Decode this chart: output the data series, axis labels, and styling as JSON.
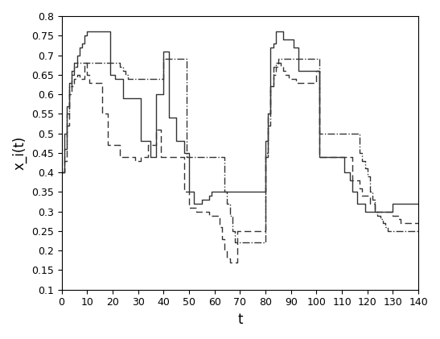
{
  "title": "",
  "xlabel": "t",
  "ylabel": "x_i(t)",
  "xlim": [
    0,
    140
  ],
  "ylim": [
    0.1,
    0.8
  ],
  "xticks": [
    0,
    10,
    20,
    30,
    40,
    50,
    60,
    70,
    80,
    90,
    100,
    110,
    120,
    130,
    140
  ],
  "yticks": [
    0.1,
    0.15,
    0.2,
    0.25,
    0.3,
    0.35,
    0.4,
    0.45,
    0.5,
    0.55,
    0.6,
    0.65,
    0.7,
    0.75,
    0.8
  ],
  "agent1_t": [
    0,
    1,
    2,
    3,
    4,
    5,
    6,
    7,
    8,
    9,
    10,
    11,
    12,
    13,
    14,
    15,
    16,
    17,
    18,
    19,
    20,
    21,
    22,
    23,
    24,
    25,
    26,
    27,
    28,
    29,
    30,
    31,
    32,
    33,
    34,
    35,
    36,
    37,
    38,
    39,
    40,
    41,
    42,
    43,
    44,
    45,
    46,
    47,
    48,
    49,
    50,
    51,
    52,
    53,
    54,
    55,
    56,
    57,
    58,
    59,
    60,
    61,
    62,
    63,
    64,
    65,
    66,
    67,
    68,
    69,
    70,
    71,
    72,
    73,
    74,
    75,
    76,
    77,
    78,
    79,
    80,
    81,
    82,
    83,
    84,
    85,
    86,
    87,
    88,
    89,
    90,
    91,
    92,
    93,
    94,
    95,
    96,
    97,
    98,
    99,
    100,
    101,
    102,
    103,
    104,
    105,
    106,
    107,
    108,
    109,
    110,
    111,
    112,
    113,
    114,
    115,
    116,
    117,
    118,
    119,
    120,
    121,
    122,
    123,
    124,
    125,
    126,
    127,
    128,
    129,
    130,
    131,
    132,
    133,
    134,
    135,
    136,
    137,
    138,
    139,
    140
  ],
  "agent1_x": [
    0.4,
    0.5,
    0.57,
    0.63,
    0.66,
    0.68,
    0.7,
    0.72,
    0.73,
    0.75,
    0.76,
    0.76,
    0.76,
    0.76,
    0.76,
    0.76,
    0.76,
    0.76,
    0.76,
    0.65,
    0.65,
    0.64,
    0.64,
    0.64,
    0.59,
    0.59,
    0.59,
    0.59,
    0.59,
    0.59,
    0.59,
    0.48,
    0.48,
    0.48,
    0.48,
    0.44,
    0.44,
    0.6,
    0.6,
    0.6,
    0.71,
    0.71,
    0.54,
    0.54,
    0.54,
    0.48,
    0.48,
    0.48,
    0.45,
    0.45,
    0.35,
    0.35,
    0.32,
    0.32,
    0.32,
    0.33,
    0.33,
    0.33,
    0.34,
    0.35,
    0.35,
    0.35,
    0.35,
    0.35,
    0.35,
    0.35,
    0.35,
    0.35,
    0.35,
    0.35,
    0.35,
    0.35,
    0.35,
    0.35,
    0.35,
    0.35,
    0.35,
    0.35,
    0.35,
    0.35,
    0.48,
    0.55,
    0.72,
    0.73,
    0.76,
    0.76,
    0.76,
    0.74,
    0.74,
    0.74,
    0.74,
    0.72,
    0.72,
    0.66,
    0.66,
    0.66,
    0.66,
    0.66,
    0.66,
    0.66,
    0.66,
    0.44,
    0.44,
    0.44,
    0.44,
    0.44,
    0.44,
    0.44,
    0.44,
    0.44,
    0.44,
    0.4,
    0.4,
    0.38,
    0.35,
    0.35,
    0.32,
    0.32,
    0.32,
    0.3,
    0.3,
    0.3,
    0.3,
    0.3,
    0.3,
    0.3,
    0.3,
    0.3,
    0.3,
    0.3,
    0.32,
    0.32,
    0.32,
    0.32,
    0.32,
    0.32,
    0.32,
    0.32,
    0.32,
    0.32,
    0.32
  ],
  "agent2_t": [
    0,
    1,
    2,
    3,
    4,
    5,
    6,
    7,
    8,
    9,
    10,
    11,
    12,
    13,
    14,
    15,
    16,
    17,
    18,
    19,
    20,
    21,
    22,
    23,
    24,
    25,
    26,
    27,
    28,
    29,
    30,
    31,
    32,
    33,
    34,
    35,
    36,
    37,
    38,
    39,
    40,
    41,
    42,
    43,
    44,
    45,
    46,
    47,
    48,
    49,
    50,
    51,
    52,
    53,
    54,
    55,
    56,
    57,
    58,
    59,
    60,
    61,
    62,
    63,
    64,
    65,
    66,
    67,
    68,
    69,
    70,
    71,
    72,
    73,
    74,
    75,
    76,
    77,
    78,
    79,
    80,
    81,
    82,
    83,
    84,
    85,
    86,
    87,
    88,
    89,
    90,
    91,
    92,
    93,
    94,
    95,
    96,
    97,
    98,
    99,
    100,
    101,
    102,
    103,
    104,
    105,
    106,
    107,
    108,
    109,
    110,
    111,
    112,
    113,
    114,
    115,
    116,
    117,
    118,
    119,
    120,
    121,
    122,
    123,
    124,
    125,
    126,
    127,
    128,
    129,
    130,
    131,
    132,
    133,
    134,
    135,
    136,
    137,
    138,
    139,
    140
  ],
  "agent2_x": [
    0.4,
    0.43,
    0.52,
    0.6,
    0.62,
    0.64,
    0.65,
    0.64,
    0.64,
    0.68,
    0.65,
    0.63,
    0.63,
    0.63,
    0.63,
    0.63,
    0.55,
    0.55,
    0.47,
    0.47,
    0.47,
    0.47,
    0.47,
    0.44,
    0.44,
    0.44,
    0.44,
    0.44,
    0.44,
    0.43,
    0.43,
    0.44,
    0.44,
    0.44,
    0.47,
    0.47,
    0.47,
    0.51,
    0.51,
    0.44,
    0.44,
    0.44,
    0.44,
    0.44,
    0.44,
    0.44,
    0.44,
    0.44,
    0.35,
    0.35,
    0.31,
    0.31,
    0.31,
    0.3,
    0.3,
    0.3,
    0.3,
    0.3,
    0.29,
    0.29,
    0.29,
    0.29,
    0.26,
    0.23,
    0.2,
    0.18,
    0.17,
    0.17,
    0.17,
    0.25,
    0.25,
    0.25,
    0.25,
    0.25,
    0.25,
    0.25,
    0.25,
    0.25,
    0.25,
    0.25,
    0.45,
    0.55,
    0.62,
    0.65,
    0.67,
    0.68,
    0.67,
    0.66,
    0.65,
    0.64,
    0.64,
    0.64,
    0.63,
    0.63,
    0.63,
    0.63,
    0.63,
    0.63,
    0.63,
    0.63,
    0.66,
    0.44,
    0.44,
    0.44,
    0.44,
    0.44,
    0.44,
    0.44,
    0.44,
    0.44,
    0.44,
    0.44,
    0.44,
    0.44,
    0.38,
    0.38,
    0.38,
    0.36,
    0.34,
    0.34,
    0.34,
    0.32,
    0.32,
    0.3,
    0.3,
    0.3,
    0.3,
    0.3,
    0.3,
    0.3,
    0.29,
    0.29,
    0.28,
    0.27,
    0.27,
    0.27,
    0.27,
    0.27,
    0.27,
    0.27,
    0.27
  ],
  "agent3_t": [
    0,
    1,
    2,
    3,
    4,
    5,
    6,
    7,
    8,
    9,
    10,
    11,
    12,
    13,
    14,
    15,
    16,
    17,
    18,
    19,
    20,
    21,
    22,
    23,
    24,
    25,
    26,
    27,
    28,
    29,
    30,
    31,
    32,
    33,
    34,
    35,
    36,
    37,
    38,
    39,
    40,
    41,
    42,
    43,
    44,
    45,
    46,
    47,
    48,
    49,
    50,
    51,
    52,
    53,
    54,
    55,
    56,
    57,
    58,
    59,
    60,
    61,
    62,
    63,
    64,
    65,
    66,
    67,
    68,
    69,
    70,
    71,
    72,
    73,
    74,
    75,
    76,
    77,
    78,
    79,
    80,
    81,
    82,
    83,
    84,
    85,
    86,
    87,
    88,
    89,
    90,
    91,
    92,
    93,
    94,
    95,
    96,
    97,
    98,
    99,
    100,
    101,
    102,
    103,
    104,
    105,
    106,
    107,
    108,
    109,
    110,
    111,
    112,
    113,
    114,
    115,
    116,
    117,
    118,
    119,
    120,
    121,
    122,
    123,
    124,
    125,
    126,
    127,
    128,
    129,
    130,
    131,
    132,
    133,
    134,
    135,
    136,
    137,
    138,
    139,
    140
  ],
  "agent3_x": [
    0.4,
    0.46,
    0.55,
    0.62,
    0.65,
    0.67,
    0.68,
    0.68,
    0.68,
    0.68,
    0.68,
    0.68,
    0.68,
    0.68,
    0.68,
    0.68,
    0.68,
    0.68,
    0.68,
    0.68,
    0.68,
    0.68,
    0.68,
    0.67,
    0.66,
    0.65,
    0.64,
    0.64,
    0.64,
    0.64,
    0.64,
    0.64,
    0.64,
    0.64,
    0.64,
    0.64,
    0.64,
    0.64,
    0.64,
    0.64,
    0.69,
    0.69,
    0.69,
    0.69,
    0.69,
    0.69,
    0.69,
    0.69,
    0.69,
    0.44,
    0.44,
    0.44,
    0.44,
    0.44,
    0.44,
    0.44,
    0.44,
    0.44,
    0.44,
    0.44,
    0.44,
    0.44,
    0.44,
    0.44,
    0.35,
    0.32,
    0.29,
    0.25,
    0.22,
    0.22,
    0.22,
    0.22,
    0.22,
    0.22,
    0.22,
    0.22,
    0.22,
    0.22,
    0.22,
    0.22,
    0.44,
    0.52,
    0.62,
    0.67,
    0.68,
    0.69,
    0.69,
    0.69,
    0.69,
    0.69,
    0.69,
    0.69,
    0.69,
    0.69,
    0.69,
    0.69,
    0.69,
    0.69,
    0.69,
    0.69,
    0.69,
    0.5,
    0.5,
    0.5,
    0.5,
    0.5,
    0.5,
    0.5,
    0.5,
    0.5,
    0.5,
    0.5,
    0.5,
    0.5,
    0.5,
    0.5,
    0.5,
    0.45,
    0.43,
    0.41,
    0.39,
    0.35,
    0.33,
    0.3,
    0.29,
    0.28,
    0.27,
    0.26,
    0.25,
    0.25,
    0.25,
    0.25,
    0.25,
    0.25,
    0.25,
    0.25,
    0.25,
    0.25,
    0.25,
    0.25,
    0.25
  ],
  "line_color": "#333333",
  "figsize": [
    5.47,
    4.21
  ],
  "dpi": 100
}
